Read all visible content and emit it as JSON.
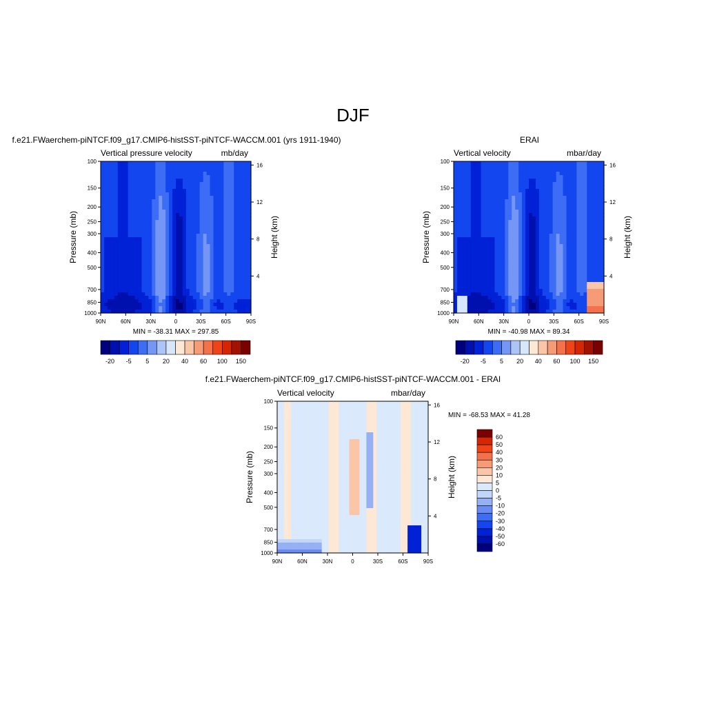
{
  "page": {
    "title": "DJF"
  },
  "colors": {
    "scale": [
      "#00007f",
      "#0010ae",
      "#0021d6",
      "#1446f0",
      "#3d6cf5",
      "#7596f5",
      "#adc4f7",
      "#d6e6fb",
      "#fde8d6",
      "#fbc6a8",
      "#f59b76",
      "#f5714b",
      "#f04416",
      "#d52503",
      "#a31102",
      "#7b0101"
    ],
    "diffScale": [
      "#00007f",
      "#0010ae",
      "#0021d6",
      "#1446f0",
      "#3d6cf5",
      "#6a8cf2",
      "#96b0f5",
      "#c2d6f9",
      "#dbe9fc",
      "#fde8d6",
      "#fbc6a8",
      "#f59b76",
      "#f5714b",
      "#f04416",
      "#d52503",
      "#7b0101"
    ]
  },
  "panels": [
    {
      "id": "model",
      "header": "f.e21.FWaerchem-piNTCF.f09_g17.CMIP6-histSST-piNTCF-WACCM.001 (yrs 1911-1940)",
      "left_title": "Vertical pressure velocity",
      "right_title": "mb/day",
      "stats": "MIN = -38.31  MAX = 297.85"
    },
    {
      "id": "obs",
      "header": "ERAI",
      "left_title": "Vertical velocity",
      "right_title": "mbar/day",
      "stats": "MIN = -40.98  MAX =  89.34"
    },
    {
      "id": "diff",
      "header": "f.e21.FWaerchem-piNTCF.f09_g17.CMIP6-histSST-piNTCF-WACCM.001 - ERAI",
      "left_title": "Vertical velocity",
      "right_title": "mbar/day",
      "stats": "MIN = -68.53  MAX =  41.28"
    }
  ],
  "chart_data": [
    {
      "type": "heatmap",
      "title": "f.e21.FWaerchem-piNTCF.f09_g17.CMIP6-histSST-piNTCF-WACCM.001 (yrs 1911-1940)",
      "xlabel": "",
      "ylabel": "Pressure (mb)",
      "y2label": "Height (km)",
      "x_ticks": [
        "90N",
        "60N",
        "30N",
        "0",
        "30S",
        "60S",
        "90S"
      ],
      "y_ticks": [
        1000,
        850,
        700,
        500,
        400,
        300,
        250,
        200,
        150,
        100
      ],
      "y2_ticks": [
        4,
        8,
        12,
        16
      ],
      "ylim": [
        1000,
        100
      ],
      "y_scale": "log",
      "colorbar_labels": [
        "-20",
        "-5",
        "5",
        "20",
        "40",
        "60",
        "100",
        "150"
      ],
      "colorbar_orientation": "horizontal",
      "min": -38.31,
      "max": 297.85
    },
    {
      "type": "heatmap",
      "title": "ERAI",
      "xlabel": "",
      "ylabel": "Pressure (mb)",
      "y2label": "Height (km)",
      "x_ticks": [
        "90N",
        "60N",
        "30N",
        "0",
        "30S",
        "60S",
        "90S"
      ],
      "y_ticks": [
        1000,
        850,
        700,
        500,
        400,
        300,
        250,
        200,
        150,
        100
      ],
      "y2_ticks": [
        4,
        8,
        12,
        16
      ],
      "ylim": [
        1000,
        100
      ],
      "y_scale": "log",
      "colorbar_labels": [
        "-20",
        "-5",
        "5",
        "20",
        "40",
        "60",
        "100",
        "150"
      ],
      "colorbar_orientation": "horizontal",
      "min": -40.98,
      "max": 89.34
    },
    {
      "type": "heatmap",
      "title": "f.e21.FWaerchem-piNTCF.f09_g17.CMIP6-histSST-piNTCF-WACCM.001 - ERAI",
      "xlabel": "",
      "ylabel": "Pressure (mb)",
      "y2label": "Height (km)",
      "x_ticks": [
        "90N",
        "60N",
        "30N",
        "0",
        "30S",
        "60S",
        "90S"
      ],
      "y_ticks": [
        1000,
        850,
        700,
        500,
        400,
        300,
        250,
        200,
        150,
        100
      ],
      "y2_ticks": [
        4,
        8,
        12,
        16
      ],
      "ylim": [
        1000,
        100
      ],
      "y_scale": "log",
      "colorbar_labels": [
        "60",
        "50",
        "40",
        "30",
        "20",
        "10",
        "5",
        "0",
        "-5",
        "-10",
        "-20",
        "-30",
        "-40",
        "-50",
        "-60"
      ],
      "colorbar_orientation": "vertical",
      "min": -68.53,
      "max": 41.28
    }
  ]
}
